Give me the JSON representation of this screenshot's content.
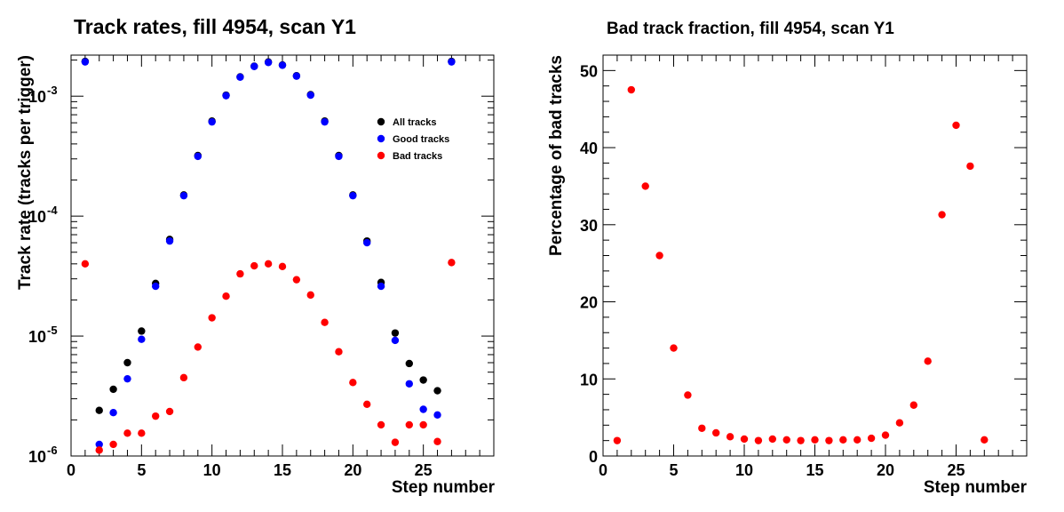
{
  "chart_data": [
    {
      "type": "scatter",
      "title": "Track rates, fill 4954, scan Y1",
      "xlabel": "Step number",
      "ylabel": "Track rate (tracks per trigger)",
      "xlim": [
        0,
        30
      ],
      "ylim": [
        1e-06,
        0.0022
      ],
      "yscale": "log",
      "grid": false,
      "legend_position": "top-right",
      "x_ticks": [
        "0",
        "5",
        "10",
        "15",
        "20",
        "25"
      ],
      "y_tick_labels": [
        {
          "base": "10",
          "exp": "-6"
        },
        {
          "base": "10",
          "exp": "-5"
        },
        {
          "base": "10",
          "exp": "-4"
        },
        {
          "base": "10",
          "exp": "-3"
        }
      ],
      "x": [
        1,
        2,
        3,
        4,
        5,
        6,
        7,
        8,
        9,
        10,
        11,
        12,
        13,
        14,
        15,
        16,
        17,
        18,
        19,
        20,
        21,
        22,
        23,
        24,
        25,
        26,
        27
      ],
      "series": [
        {
          "name": "All tracks",
          "color": "#000000",
          "values": [
            0.00195,
            2.4e-06,
            3.6e-06,
            6e-06,
            1.1e-05,
            2.75e-05,
            6.4e-05,
            0.00015,
            0.00032,
            0.00062,
            0.00102,
            0.00145,
            0.00178,
            0.00193,
            0.00182,
            0.00148,
            0.00103,
            0.00062,
            0.00032,
            0.00015,
            6.2e-05,
            2.8e-05,
            1.06e-05,
            5.9e-06,
            4.3e-06,
            3.5e-06,
            0.00195
          ]
        },
        {
          "name": "Good tracks",
          "color": "#0000ff",
          "values": [
            0.00193,
            1.25e-06,
            2.3e-06,
            4.4e-06,
            9.4e-06,
            2.6e-05,
            6.2e-05,
            0.000148,
            0.000315,
            0.00061,
            0.00101,
            0.00144,
            0.00177,
            0.00191,
            0.00181,
            0.00147,
            0.00102,
            0.00061,
            0.000315,
            0.000148,
            6e-05,
            2.6e-05,
            9.2e-06,
            4e-06,
            2.45e-06,
            2.2e-06,
            0.00193
          ]
        },
        {
          "name": "Bad tracks",
          "color": "#ff0000",
          "values": [
            4e-05,
            1.12e-06,
            1.25e-06,
            1.55e-06,
            1.55e-06,
            2.15e-06,
            2.35e-06,
            4.5e-06,
            8.1e-06,
            1.42e-05,
            2.15e-05,
            3.3e-05,
            3.85e-05,
            4e-05,
            3.8e-05,
            2.95e-05,
            2.2e-05,
            1.3e-05,
            7.4e-06,
            4.1e-06,
            2.7e-06,
            1.82e-06,
            1.3e-06,
            1.82e-06,
            1.82e-06,
            1.32e-06,
            4.1e-05
          ]
        }
      ]
    },
    {
      "type": "scatter",
      "title": "Bad track fraction, fill 4954, scan Y1",
      "xlabel": "Step number",
      "ylabel": "Percentage of bad tracks",
      "xlim": [
        0,
        30
      ],
      "ylim": [
        0,
        52
      ],
      "grid": false,
      "x_ticks": [
        "0",
        "5",
        "10",
        "15",
        "20",
        "25"
      ],
      "y_ticks": [
        "0",
        "10",
        "20",
        "30",
        "40",
        "50"
      ],
      "x": [
        1,
        2,
        3,
        4,
        5,
        6,
        7,
        8,
        9,
        10,
        11,
        12,
        13,
        14,
        15,
        16,
        17,
        18,
        19,
        20,
        21,
        22,
        23,
        24,
        25,
        26,
        27
      ],
      "series": [
        {
          "color": "#ff0000",
          "values": [
            2.0,
            47.5,
            35.0,
            26.0,
            14.0,
            7.9,
            3.6,
            3.0,
            2.5,
            2.2,
            2.0,
            2.2,
            2.1,
            2.0,
            2.1,
            2.0,
            2.1,
            2.1,
            2.3,
            2.7,
            4.3,
            6.6,
            12.3,
            31.3,
            42.9,
            37.6,
            2.1
          ]
        }
      ]
    }
  ]
}
